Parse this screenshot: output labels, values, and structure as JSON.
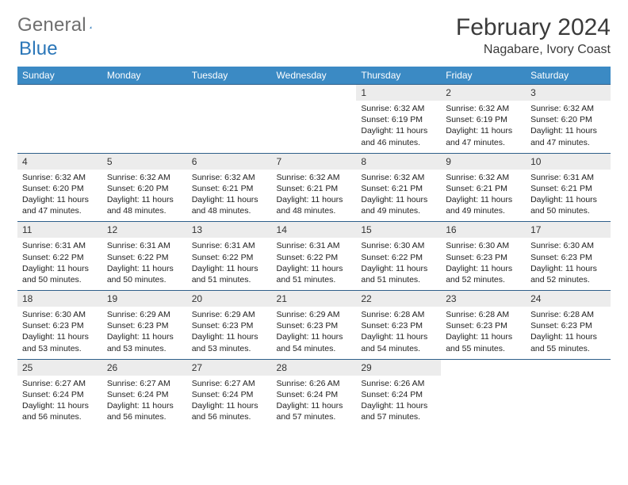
{
  "logo": {
    "word1": "General",
    "word2": "Blue"
  },
  "header": {
    "month_title": "February 2024",
    "location": "Nagabare, Ivory Coast"
  },
  "colors": {
    "header_bg": "#3b8ac4",
    "row_divider": "#2e5f8a",
    "daynum_bg": "#ececec"
  },
  "daynames": [
    "Sunday",
    "Monday",
    "Tuesday",
    "Wednesday",
    "Thursday",
    "Friday",
    "Saturday"
  ],
  "weeks": [
    [
      {
        "n": "",
        "sr": "",
        "ss": "",
        "dl": ""
      },
      {
        "n": "",
        "sr": "",
        "ss": "",
        "dl": ""
      },
      {
        "n": "",
        "sr": "",
        "ss": "",
        "dl": ""
      },
      {
        "n": "",
        "sr": "",
        "ss": "",
        "dl": ""
      },
      {
        "n": "1",
        "sr": "6:32 AM",
        "ss": "6:19 PM",
        "dl": "11 hours and 46 minutes."
      },
      {
        "n": "2",
        "sr": "6:32 AM",
        "ss": "6:19 PM",
        "dl": "11 hours and 47 minutes."
      },
      {
        "n": "3",
        "sr": "6:32 AM",
        "ss": "6:20 PM",
        "dl": "11 hours and 47 minutes."
      }
    ],
    [
      {
        "n": "4",
        "sr": "6:32 AM",
        "ss": "6:20 PM",
        "dl": "11 hours and 47 minutes."
      },
      {
        "n": "5",
        "sr": "6:32 AM",
        "ss": "6:20 PM",
        "dl": "11 hours and 48 minutes."
      },
      {
        "n": "6",
        "sr": "6:32 AM",
        "ss": "6:21 PM",
        "dl": "11 hours and 48 minutes."
      },
      {
        "n": "7",
        "sr": "6:32 AM",
        "ss": "6:21 PM",
        "dl": "11 hours and 48 minutes."
      },
      {
        "n": "8",
        "sr": "6:32 AM",
        "ss": "6:21 PM",
        "dl": "11 hours and 49 minutes."
      },
      {
        "n": "9",
        "sr": "6:32 AM",
        "ss": "6:21 PM",
        "dl": "11 hours and 49 minutes."
      },
      {
        "n": "10",
        "sr": "6:31 AM",
        "ss": "6:21 PM",
        "dl": "11 hours and 50 minutes."
      }
    ],
    [
      {
        "n": "11",
        "sr": "6:31 AM",
        "ss": "6:22 PM",
        "dl": "11 hours and 50 minutes."
      },
      {
        "n": "12",
        "sr": "6:31 AM",
        "ss": "6:22 PM",
        "dl": "11 hours and 50 minutes."
      },
      {
        "n": "13",
        "sr": "6:31 AM",
        "ss": "6:22 PM",
        "dl": "11 hours and 51 minutes."
      },
      {
        "n": "14",
        "sr": "6:31 AM",
        "ss": "6:22 PM",
        "dl": "11 hours and 51 minutes."
      },
      {
        "n": "15",
        "sr": "6:30 AM",
        "ss": "6:22 PM",
        "dl": "11 hours and 51 minutes."
      },
      {
        "n": "16",
        "sr": "6:30 AM",
        "ss": "6:23 PM",
        "dl": "11 hours and 52 minutes."
      },
      {
        "n": "17",
        "sr": "6:30 AM",
        "ss": "6:23 PM",
        "dl": "11 hours and 52 minutes."
      }
    ],
    [
      {
        "n": "18",
        "sr": "6:30 AM",
        "ss": "6:23 PM",
        "dl": "11 hours and 53 minutes."
      },
      {
        "n": "19",
        "sr": "6:29 AM",
        "ss": "6:23 PM",
        "dl": "11 hours and 53 minutes."
      },
      {
        "n": "20",
        "sr": "6:29 AM",
        "ss": "6:23 PM",
        "dl": "11 hours and 53 minutes."
      },
      {
        "n": "21",
        "sr": "6:29 AM",
        "ss": "6:23 PM",
        "dl": "11 hours and 54 minutes."
      },
      {
        "n": "22",
        "sr": "6:28 AM",
        "ss": "6:23 PM",
        "dl": "11 hours and 54 minutes."
      },
      {
        "n": "23",
        "sr": "6:28 AM",
        "ss": "6:23 PM",
        "dl": "11 hours and 55 minutes."
      },
      {
        "n": "24",
        "sr": "6:28 AM",
        "ss": "6:23 PM",
        "dl": "11 hours and 55 minutes."
      }
    ],
    [
      {
        "n": "25",
        "sr": "6:27 AM",
        "ss": "6:24 PM",
        "dl": "11 hours and 56 minutes."
      },
      {
        "n": "26",
        "sr": "6:27 AM",
        "ss": "6:24 PM",
        "dl": "11 hours and 56 minutes."
      },
      {
        "n": "27",
        "sr": "6:27 AM",
        "ss": "6:24 PM",
        "dl": "11 hours and 56 minutes."
      },
      {
        "n": "28",
        "sr": "6:26 AM",
        "ss": "6:24 PM",
        "dl": "11 hours and 57 minutes."
      },
      {
        "n": "29",
        "sr": "6:26 AM",
        "ss": "6:24 PM",
        "dl": "11 hours and 57 minutes."
      },
      {
        "n": "",
        "sr": "",
        "ss": "",
        "dl": ""
      },
      {
        "n": "",
        "sr": "",
        "ss": "",
        "dl": ""
      }
    ]
  ],
  "labels": {
    "sunrise": "Sunrise: ",
    "sunset": "Sunset: ",
    "daylight": "Daylight: "
  }
}
